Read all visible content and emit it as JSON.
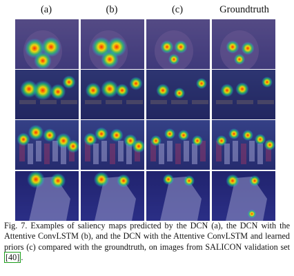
{
  "columns": [
    "(a)",
    "(b)",
    "(c)",
    "Groundtruth"
  ],
  "caption": {
    "label": "Fig. 7.",
    "text": "Examples of saliency maps predicted by the DCN (a), the DCN with the Attentive ConvLSTM (b), and the DCN with the Attentive ConvLSTM and learned priors (c) compared with the groundtruth, on images from SALICON validation set",
    "ref": "[40]",
    "tail": "."
  },
  "colors": {
    "heat_hot": "#ff2a00",
    "heat_warm": "#ffe600",
    "heat_mid": "#22d36a",
    "heat_cool": "#2aa8ff",
    "overlay": "#2b2f9e"
  }
}
